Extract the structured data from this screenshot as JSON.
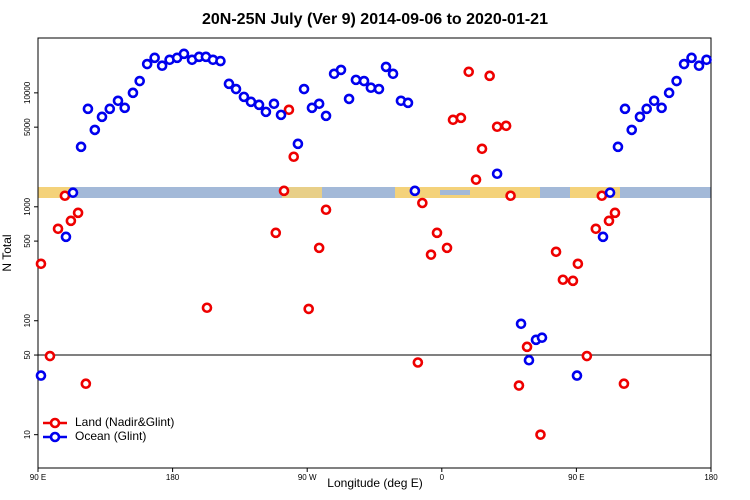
{
  "chart_data": {
    "type": "scatter",
    "title": "20N-25N July (Ver 9)   2014-09-06 to 2020-01-21",
    "x_label": "Longitude (deg E)",
    "y_label": "N Total",
    "log_y": true,
    "legend": "bottom-left",
    "hline": 50,
    "xlim": [
      90,
      540
    ],
    "xticks": [
      {
        "value": 90,
        "label": "90 E"
      },
      180,
      {
        "value": 270,
        "label": "90 W"
      },
      {
        "value": 360,
        "label": "0"
      },
      {
        "value": 450,
        "label": "90 E"
      },
      {
        "value": 540,
        "label": "180"
      }
    ],
    "ylim": [
      5.1,
      30300
    ],
    "yticks": [
      10,
      50,
      100,
      500,
      1000,
      5000,
      10000
    ],
    "series": [
      {
        "name": "Land (Nadir&Glint)",
        "color": "#ee0000",
        "x": [
          92,
          98,
          103.4,
          108,
          112,
          116.8,
          122,
          203,
          249,
          254.5,
          257.8,
          261,
          271,
          278,
          282.6,
          344,
          347,
          352.8,
          356.8,
          363.5,
          367.5,
          372.8,
          378,
          382.9,
          386.9,
          392,
          397,
          403,
          406,
          411.6,
          417,
          426,
          436.4,
          441,
          447.7,
          451,
          457,
          463,
          467,
          471.8,
          475.8,
          481.8
        ],
        "values": [
          316,
          49,
          641,
          1250,
          753,
          885,
          28,
          130,
          591,
          1380,
          7100,
          2750,
          127,
          436,
          942,
          43,
          1080,
          380,
          591,
          436,
          5800,
          6030,
          15300,
          1730,
          3230,
          14100,
          5040,
          5140,
          1250,
          27,
          59,
          10,
          403,
          229,
          224,
          316,
          49,
          641,
          1250,
          753,
          885,
          28
        ]
      },
      {
        "name": "Ocean (Glint)",
        "color": "#0000ee",
        "x": [
          92,
          108.7,
          113.4,
          118.8,
          123.4,
          128,
          132.8,
          138,
          143.5,
          148,
          153.5,
          158,
          163,
          168,
          173,
          178,
          183,
          187.6,
          193,
          197.7,
          202.3,
          207,
          212,
          217.7,
          222.4,
          227.7,
          232.4,
          237.8,
          242.4,
          247.8,
          252.5,
          263.8,
          267.9,
          273.2,
          278,
          282.6,
          288,
          292.6,
          298,
          302.6,
          308,
          312.6,
          318,
          322.7,
          327.4,
          332.7,
          337.4,
          342,
          397,
          413,
          418.3,
          423,
          427,
          450.4,
          467.8,
          472.5,
          477.8,
          482.5,
          487,
          492.5,
          497,
          502,
          507,
          512,
          517,
          522,
          527,
          532,
          537
        ],
        "values": [
          33,
          545,
          1330,
          3360,
          7240,
          4730,
          6160,
          7240,
          8520,
          7390,
          10000,
          12700,
          17900,
          20300,
          17300,
          19500,
          20300,
          22000,
          19500,
          20700,
          20700,
          19500,
          19000,
          12000,
          10800,
          9220,
          8340,
          7850,
          6810,
          8020,
          6410,
          3570,
          10800,
          7390,
          8020,
          6280,
          14700,
          15900,
          8850,
          13000,
          12700,
          11100,
          10800,
          16900,
          14700,
          8520,
          8170,
          1380,
          1950,
          94,
          45,
          68,
          71,
          33,
          545,
          1330,
          3360,
          7240,
          4730,
          6160,
          7240,
          8520,
          7390,
          10000,
          12700,
          17900,
          20300,
          17300,
          19500
        ]
      }
    ]
  }
}
